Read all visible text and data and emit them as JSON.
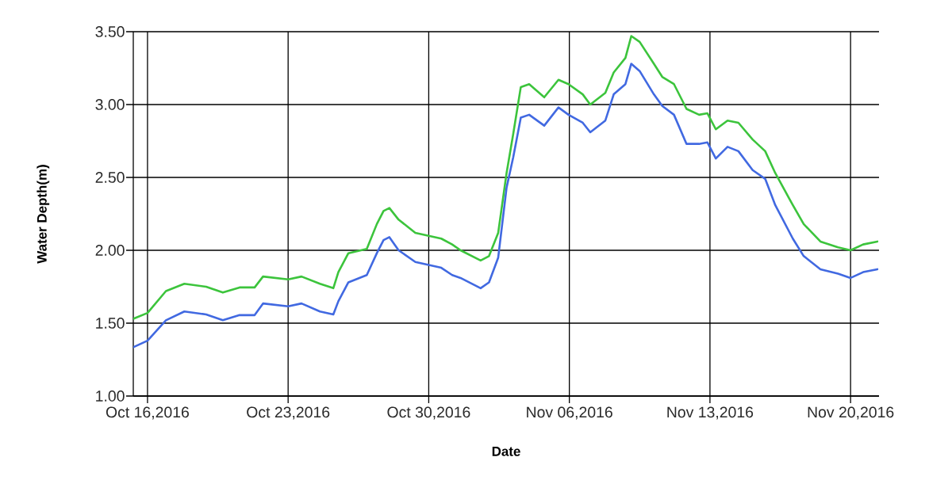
{
  "chart_data": {
    "type": "line",
    "xlabel": "Date",
    "ylabel": "Water Depth(m)",
    "xlim": [
      "2016-10-15T07:00",
      "2016-11-21T10:00"
    ],
    "xticks": [
      {
        "value": "2016-10-16",
        "label": "Oct 16,2016"
      },
      {
        "value": "2016-10-23",
        "label": "Oct 23,2016"
      },
      {
        "value": "2016-10-30",
        "label": "Oct 30,2016"
      },
      {
        "value": "2016-11-06",
        "label": "Nov 06,2016"
      },
      {
        "value": "2016-11-13",
        "label": "Nov 13,2016"
      },
      {
        "value": "2016-11-20",
        "label": "Nov 20,2016"
      }
    ],
    "ylim": [
      1.0,
      3.5
    ],
    "yticks": [
      {
        "value": 1.0,
        "label": "1.00"
      },
      {
        "value": 1.5,
        "label": "1.50"
      },
      {
        "value": 2.0,
        "label": "2.00"
      },
      {
        "value": 2.5,
        "label": "2.50"
      },
      {
        "value": 3.0,
        "label": "3.00"
      },
      {
        "value": 3.5,
        "label": "3.50"
      }
    ],
    "grid": true,
    "x": [
      "2016-10-15T07:00",
      "2016-10-16T00:00",
      "2016-10-16T22:00",
      "2016-10-17T20:00",
      "2016-10-18T22:00",
      "2016-10-19T18:00",
      "2016-10-20T14:00",
      "2016-10-21T08:00",
      "2016-10-21T18:00",
      "2016-10-23T00:00",
      "2016-10-23T16:00",
      "2016-10-24T14:00",
      "2016-10-25T06:00",
      "2016-10-25T12:00",
      "2016-10-26T00:00",
      "2016-10-26T22:00",
      "2016-10-27T10:00",
      "2016-10-27T18:00",
      "2016-10-28T01:00",
      "2016-10-28T12:00",
      "2016-10-29T08:00",
      "2016-10-30T15:00",
      "2016-10-31T04:00",
      "2016-10-31T14:00",
      "2016-11-01T14:00",
      "2016-11-02T00:00",
      "2016-11-02T11:00",
      "2016-11-02T21:00",
      "2016-11-03T05:00",
      "2016-11-03T14:00",
      "2016-11-04T00:00",
      "2016-11-04T18:00",
      "2016-11-05T11:00",
      "2016-11-05T23:00",
      "2016-11-06T16:00",
      "2016-11-07T01:00",
      "2016-11-07T19:00",
      "2016-11-08T05:00",
      "2016-11-08T19:00",
      "2016-11-09T02:00",
      "2016-11-09T12:00",
      "2016-11-10T05:00",
      "2016-11-10T15:00",
      "2016-11-11T05:00",
      "2016-11-11T20:00",
      "2016-11-12T11:00",
      "2016-11-12T21:00",
      "2016-11-13T07:00",
      "2016-11-13T21:00",
      "2016-11-14T10:00",
      "2016-11-15T03:00",
      "2016-11-15T18:00",
      "2016-11-16T06:00",
      "2016-11-17T03:00",
      "2016-11-17T16:00",
      "2016-11-18T12:00",
      "2016-11-19T09:00",
      "2016-11-20T00:00",
      "2016-11-20T15:00",
      "2016-11-21T08:00"
    ],
    "series": [
      {
        "color": "#3cc43c",
        "values": [
          1.53,
          1.57,
          1.72,
          1.77,
          1.75,
          1.71,
          1.745,
          1.745,
          1.82,
          1.8,
          1.82,
          1.77,
          1.74,
          1.85,
          1.98,
          2.01,
          2.18,
          2.27,
          2.29,
          2.21,
          2.12,
          2.08,
          2.04,
          2.0,
          1.93,
          1.96,
          2.12,
          2.53,
          2.8,
          3.12,
          3.14,
          3.05,
          3.17,
          3.14,
          3.07,
          3.0,
          3.08,
          3.22,
          3.32,
          3.47,
          3.43,
          3.28,
          3.19,
          3.14,
          2.97,
          2.93,
          2.94,
          2.83,
          2.89,
          2.875,
          2.76,
          2.68,
          2.53,
          2.31,
          2.18,
          2.06,
          2.02,
          2.0,
          2.04,
          2.06
        ]
      },
      {
        "color": "#4169e1",
        "values": [
          1.335,
          1.38,
          1.52,
          1.58,
          1.56,
          1.52,
          1.555,
          1.555,
          1.635,
          1.615,
          1.635,
          1.58,
          1.56,
          1.65,
          1.78,
          1.83,
          1.98,
          2.07,
          2.09,
          2.0,
          1.92,
          1.88,
          1.83,
          1.81,
          1.74,
          1.78,
          1.95,
          2.43,
          2.64,
          2.91,
          2.93,
          2.855,
          2.98,
          2.93,
          2.875,
          2.81,
          2.89,
          3.07,
          3.14,
          3.28,
          3.23,
          3.07,
          2.99,
          2.93,
          2.73,
          2.73,
          2.74,
          2.63,
          2.71,
          2.68,
          2.55,
          2.49,
          2.31,
          2.08,
          1.96,
          1.87,
          1.84,
          1.81,
          1.85,
          1.87
        ]
      }
    ]
  }
}
